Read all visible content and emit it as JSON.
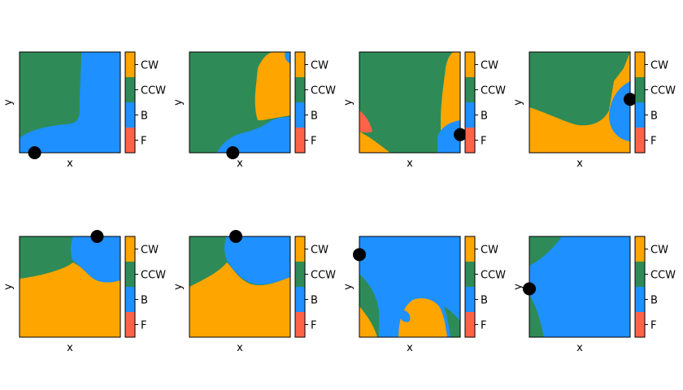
{
  "colors": {
    "CW": "#ffa500",
    "CCW": "#2e8b57",
    "B": "#1e90ff",
    "F": "#ff6347",
    "marker": "#000000"
  },
  "colorbar": {
    "labels": [
      "CW",
      "CCW",
      "B",
      "F"
    ]
  },
  "axes": {
    "xlabel": "x",
    "ylabel": "y"
  },
  "chart_data": [
    {
      "type": "heatmap",
      "xlabel": "x",
      "ylabel": "y",
      "categories": [
        "F",
        "B",
        "CCW",
        "CW"
      ],
      "marker": [
        0.15,
        0.0
      ],
      "regions_description": [
        "CCW",
        "B"
      ]
    },
    {
      "type": "heatmap",
      "xlabel": "x",
      "ylabel": "y",
      "categories": [
        "F",
        "B",
        "CCW",
        "CW"
      ],
      "marker": [
        0.43,
        0.0
      ],
      "regions_description": [
        "CCW",
        "CW",
        "B"
      ]
    },
    {
      "type": "heatmap",
      "xlabel": "x",
      "ylabel": "y",
      "categories": [
        "F",
        "B",
        "CCW",
        "CW"
      ],
      "marker": [
        1.0,
        0.18
      ],
      "regions_description": [
        "CCW",
        "CW",
        "B",
        "F"
      ]
    },
    {
      "type": "heatmap",
      "xlabel": "x",
      "ylabel": "y",
      "categories": [
        "F",
        "B",
        "CCW",
        "CW"
      ],
      "marker": [
        1.0,
        0.53
      ],
      "regions_description": [
        "CCW",
        "CW",
        "B"
      ]
    },
    {
      "type": "heatmap",
      "xlabel": "x",
      "ylabel": "y",
      "categories": [
        "F",
        "B",
        "CCW",
        "CW"
      ],
      "marker": [
        0.77,
        1.0
      ],
      "regions_description": [
        "CCW",
        "CW",
        "B"
      ]
    },
    {
      "type": "heatmap",
      "xlabel": "x",
      "ylabel": "y",
      "categories": [
        "F",
        "B",
        "CCW",
        "CW"
      ],
      "marker": [
        0.46,
        1.0
      ],
      "regions_description": [
        "CCW",
        "CW",
        "B"
      ]
    },
    {
      "type": "heatmap",
      "xlabel": "x",
      "ylabel": "y",
      "categories": [
        "F",
        "B",
        "CCW",
        "CW"
      ],
      "marker": [
        0.0,
        0.82
      ],
      "regions_description": [
        "B",
        "CCW",
        "CW"
      ]
    },
    {
      "type": "heatmap",
      "xlabel": "x",
      "ylabel": "y",
      "categories": [
        "F",
        "B",
        "CCW",
        "CW"
      ],
      "marker": [
        0.0,
        0.48
      ],
      "regions_description": [
        "B",
        "CCW"
      ]
    }
  ]
}
